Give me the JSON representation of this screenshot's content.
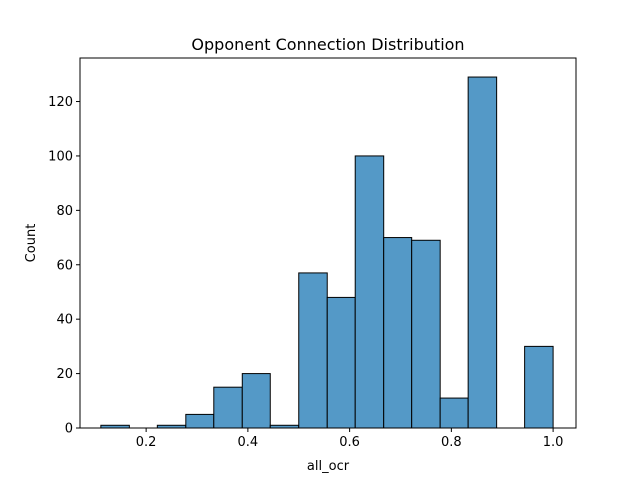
{
  "chart_data": {
    "type": "bar",
    "title": "Opponent Connection Distribution",
    "xlabel": "all_ocr",
    "ylabel": "Count",
    "xlim": [
      0.07,
      1.045
    ],
    "ylim": [
      0,
      136
    ],
    "xticks": [
      {
        "value": 0.2,
        "label": "0.2"
      },
      {
        "value": 0.4,
        "label": "0.4"
      },
      {
        "value": 0.6,
        "label": "0.6"
      },
      {
        "value": 0.8,
        "label": "0.8"
      },
      {
        "value": 1.0,
        "label": "1.0"
      }
    ],
    "yticks": [
      {
        "value": 0,
        "label": "0"
      },
      {
        "value": 20,
        "label": "20"
      },
      {
        "value": 40,
        "label": "40"
      },
      {
        "value": 60,
        "label": "60"
      },
      {
        "value": 80,
        "label": "80"
      },
      {
        "value": 100,
        "label": "100"
      },
      {
        "value": 120,
        "label": "120"
      }
    ],
    "bins": [
      {
        "x0": 0.111,
        "x1": 0.167,
        "count": 1
      },
      {
        "x0": 0.167,
        "x1": 0.222,
        "count": 0
      },
      {
        "x0": 0.222,
        "x1": 0.278,
        "count": 1
      },
      {
        "x0": 0.278,
        "x1": 0.333,
        "count": 5
      },
      {
        "x0": 0.333,
        "x1": 0.389,
        "count": 15
      },
      {
        "x0": 0.389,
        "x1": 0.444,
        "count": 20
      },
      {
        "x0": 0.444,
        "x1": 0.5,
        "count": 1
      },
      {
        "x0": 0.5,
        "x1": 0.556,
        "count": 57
      },
      {
        "x0": 0.556,
        "x1": 0.611,
        "count": 48
      },
      {
        "x0": 0.611,
        "x1": 0.667,
        "count": 100
      },
      {
        "x0": 0.667,
        "x1": 0.722,
        "count": 70
      },
      {
        "x0": 0.722,
        "x1": 0.778,
        "count": 69
      },
      {
        "x0": 0.778,
        "x1": 0.833,
        "count": 11
      },
      {
        "x0": 0.833,
        "x1": 0.889,
        "count": 129
      },
      {
        "x0": 0.889,
        "x1": 0.944,
        "count": 0
      },
      {
        "x0": 0.944,
        "x1": 1.0,
        "count": 30
      }
    ],
    "bar_color": "#5499c7",
    "edge_color": "#000000",
    "grid": false,
    "legend": "none"
  }
}
